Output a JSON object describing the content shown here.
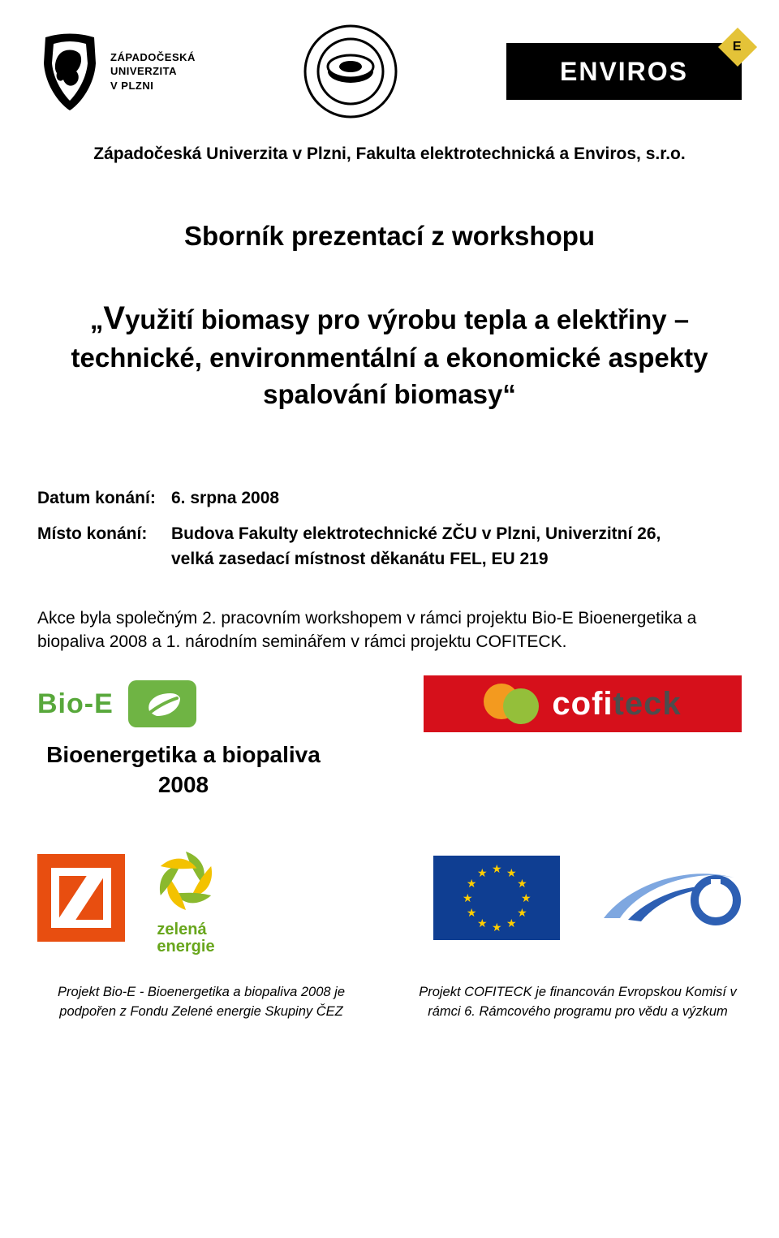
{
  "logos": {
    "zcu_text_line1": "ZÁPADOČESKÁ",
    "zcu_text_line2": "UNIVERZITA",
    "zcu_text_line3": "V PLZNI",
    "enviros_label": "ENVIROS",
    "enviros_corner": "E",
    "cofiteck_cofi": "cofi",
    "cofiteck_teck": "teck",
    "bioe_word": "Bio-E",
    "bioe_sub_line1": "Bioenergetika a biopaliva",
    "bioe_sub_line2": "2008",
    "zelena_line1": "zelená",
    "zelena_line2": "energie"
  },
  "org_line": "Západočeská Univerzita v Plzni, Fakulta elektrotechnická a Enviros, s.r.o.",
  "doc_title": "Sborník prezentací z workshopu",
  "main_title_prefix": "„",
  "main_title_bigV": "V",
  "main_title_rest": "yužití biomasy pro výrobu tepla a elektřiny – technické, environmentální a ekonomické aspekty spalování biomasy“",
  "date_label": "Datum konání:",
  "date_value": "6. srpna 2008",
  "place_label": "Místo konání:",
  "place_value": "Budova Fakulty elektrotechnické ZČU v Plzni, Univerzitní 26, velká zasedací místnost děkanátu FEL, EU 219",
  "description": "Akce byla společným 2. pracovním workshopem v rámci projektu Bio-E Bioenergetika a biopaliva 2008 a 1. národním seminářem v rámci projektu COFITECK.",
  "footer_left": "Projekt Bio-E - Bioenergetika a biopaliva 2008 je podpořen z Fondu Zelené energie Skupiny ČEZ",
  "footer_right": "Projekt COFITECK je financován Evropskou Komisí v rámci 6. Rámcového programu pro vědu a výzkum",
  "colors": {
    "enviros_bg": "#000000",
    "enviros_corner": "#e4c338",
    "bioe_green": "#58a83b",
    "leaf_green": "#6fb444",
    "cofiteck_red": "#d6101b",
    "cofiteck_orange": "#f39a1f",
    "cofiteck_green": "#94bf3a",
    "cofiteck_grey": "#4d4d4d",
    "cez_orange": "#e84e10",
    "zelena_green": "#68a61c",
    "eu_blue": "#0f3e92",
    "eu_gold": "#ffcd00",
    "fp6_blue1": "#2d5fb3",
    "fp6_blue2": "#7ea7e0"
  },
  "eu_stars_count": 12
}
